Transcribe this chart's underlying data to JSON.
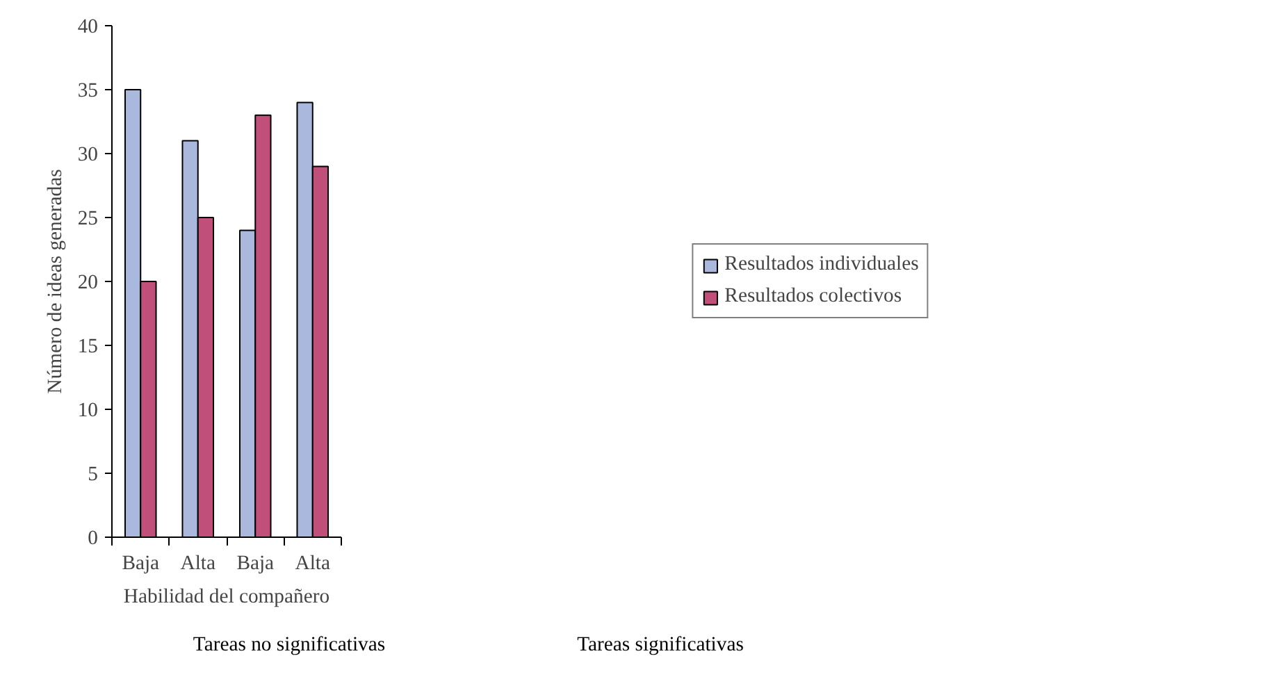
{
  "chart_data": {
    "type": "bar",
    "xlabel": "Habilidad del compañero",
    "ylabel": "Número de ideas generadas",
    "categories": [
      "Baja",
      "Alta",
      "Baja",
      "Alta"
    ],
    "series": [
      {
        "name": "Resultados individuales",
        "color": "#aab8de",
        "values": [
          35,
          31,
          24,
          34
        ]
      },
      {
        "name": "Resultados colectivos",
        "color": "#c0507a",
        "values": [
          20,
          25,
          33,
          29
        ]
      }
    ],
    "ylim": [
      0,
      40
    ],
    "yticks": [
      0,
      5,
      10,
      15,
      20,
      25,
      30,
      35,
      40
    ],
    "grid": false,
    "legend": "right",
    "annotations": [
      "Tareas no significativas",
      "Tareas significativas"
    ]
  }
}
